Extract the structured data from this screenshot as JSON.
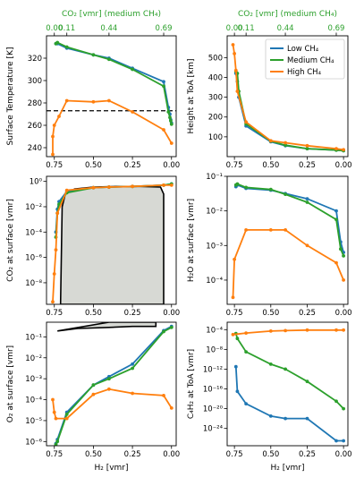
{
  "colors": {
    "low": "#1f77b4",
    "medium": "#2ca02c",
    "high": "#ff7f0e",
    "fill": "#d7d9d4",
    "dashed": "#000000"
  },
  "chart_data": [
    {
      "id": "surface-temperature",
      "type": "line",
      "ylabel": "Surface Temperature [K]",
      "xlabel": "",
      "top_axis_label": "CO₂ [vmr] (medium CH₄)",
      "top_ticks": [
        "0.00",
        "0.11",
        "0.44",
        "0.69"
      ],
      "xticks": [
        "0.75",
        "0.50",
        "0.25",
        "0.00"
      ],
      "yticks": [
        "240",
        "260",
        "280",
        "300",
        "320"
      ],
      "xlim": [
        0.8,
        -0.03
      ],
      "ylim": [
        232,
        340
      ],
      "yscale": "linear",
      "hline": 273,
      "series": [
        {
          "key": "low",
          "x": [
            0.74,
            0.73,
            0.67,
            0.5,
            0.4,
            0.25,
            0.05,
            0.02,
            0.01,
            0.005,
            0.0
          ],
          "y": [
            333,
            333,
            329,
            323,
            320,
            311,
            299,
            276,
            270,
            265,
            262
          ]
        },
        {
          "key": "medium",
          "x": [
            0.74,
            0.73,
            0.67,
            0.5,
            0.4,
            0.25,
            0.05,
            0.02,
            0.01,
            0.005,
            0.0
          ],
          "y": [
            333,
            334,
            330,
            323,
            319,
            310,
            295,
            272,
            267,
            264,
            261
          ]
        },
        {
          "key": "high",
          "x": [
            0.76,
            0.76,
            0.75,
            0.72,
            0.67,
            0.5,
            0.4,
            0.25,
            0.05,
            0.0
          ],
          "y": [
            234,
            250,
            260,
            268,
            282,
            281,
            282,
            272,
            256,
            244
          ]
        }
      ]
    },
    {
      "id": "height-toa",
      "type": "line",
      "ylabel": "Height at ToA [km]",
      "xlabel": "",
      "top_axis_label": "CO₂ [vmr] (medium CH₄)",
      "top_ticks": [
        "0.00",
        "0.11",
        "0.44",
        "0.69"
      ],
      "xticks": [
        "0.75",
        "0.50",
        "0.25",
        "0.00"
      ],
      "yticks": [
        "100",
        "200",
        "300",
        "400",
        "500"
      ],
      "xlim": [
        0.8,
        -0.03
      ],
      "ylim": [
        0,
        610
      ],
      "yscale": "linear",
      "legend": {
        "placement": "top-right",
        "entries": [
          {
            "key": "low",
            "label": "Low CH₄"
          },
          {
            "key": "medium",
            "label": "Medium CH₄"
          },
          {
            "key": "high",
            "label": "High CH₄"
          }
        ]
      },
      "series": [
        {
          "key": "low",
          "x": [
            0.74,
            0.73,
            0.72,
            0.67,
            0.5,
            0.4,
            0.25,
            0.05,
            0.0
          ],
          "y": [
            420,
            380,
            300,
            155,
            75,
            55,
            40,
            33,
            30
          ]
        },
        {
          "key": "medium",
          "x": [
            0.74,
            0.73,
            0.72,
            0.67,
            0.5,
            0.4,
            0.25,
            0.05,
            0.0
          ],
          "y": [
            430,
            420,
            330,
            165,
            78,
            58,
            40,
            33,
            30
          ]
        },
        {
          "key": "high",
          "x": [
            0.76,
            0.75,
            0.74,
            0.73,
            0.67,
            0.5,
            0.4,
            0.25,
            0.05,
            0.0
          ],
          "y": [
            565,
            520,
            435,
            330,
            175,
            80,
            70,
            55,
            40,
            35
          ]
        }
      ]
    },
    {
      "id": "co2-surface",
      "type": "line",
      "ylabel": "CO₂ at surface [vmr]",
      "xlabel": "",
      "xticks": [
        "0.75",
        "0.50",
        "0.25",
        "0.00"
      ],
      "yticks": [
        "10⁻⁸",
        "10⁻⁶",
        "10⁻⁴",
        "10⁻²",
        "10⁰"
      ],
      "ytick_exps": [
        -8,
        -6,
        -4,
        -2,
        0
      ],
      "xlim": [
        0.8,
        -0.03
      ],
      "ylim_log10": [
        -9.7,
        0.4
      ],
      "yscale": "log",
      "region": {
        "outline_x": [
          0.71,
          0.7,
          0.68,
          0.62,
          0.5,
          0.35,
          0.2,
          0.07,
          0.05,
          0.05,
          0.71
        ],
        "outline_log_y": [
          -9.7,
          -2.0,
          -1.0,
          -0.6,
          -0.45,
          -0.4,
          -0.4,
          -0.45,
          -1.0,
          -9.7,
          -9.7
        ]
      },
      "series": [
        {
          "key": "low",
          "x": [
            0.74,
            0.73,
            0.72,
            0.67,
            0.5,
            0.4,
            0.25,
            0.05,
            0.0
          ],
          "log_y": [
            -4.0,
            -2.2,
            -1.6,
            -0.8,
            -0.5,
            -0.45,
            -0.4,
            -0.3,
            -0.2
          ]
        },
        {
          "key": "medium",
          "x": [
            0.74,
            0.73,
            0.72,
            0.67,
            0.5,
            0.4,
            0.25,
            0.05,
            0.0
          ],
          "log_y": [
            -4.4,
            -2.5,
            -1.8,
            -0.9,
            -0.5,
            -0.45,
            -0.4,
            -0.3,
            -0.2
          ]
        },
        {
          "key": "high",
          "x": [
            0.76,
            0.75,
            0.74,
            0.73,
            0.67,
            0.5,
            0.4,
            0.25,
            0.05,
            0.0
          ],
          "log_y": [
            -9.5,
            -7.3,
            -5.4,
            -2.5,
            -0.7,
            -0.5,
            -0.45,
            -0.4,
            -0.3,
            -0.3
          ]
        }
      ]
    },
    {
      "id": "h2o-surface",
      "type": "line",
      "ylabel": "H₂O at surface [vmr]",
      "xlabel": "",
      "xticks": [
        "0.75",
        "0.50",
        "0.25",
        "0.00"
      ],
      "yticks": [
        "10⁻⁴",
        "10⁻³",
        "10⁻²",
        "10⁻¹"
      ],
      "ytick_exps": [
        -4,
        -3,
        -2,
        -1
      ],
      "xlim": [
        0.8,
        -0.03
      ],
      "ylim_log10": [
        -4.7,
        -1.0
      ],
      "yscale": "log",
      "series": [
        {
          "key": "low",
          "x": [
            0.74,
            0.73,
            0.67,
            0.5,
            0.4,
            0.25,
            0.05,
            0.02,
            0.0
          ],
          "log_y": [
            -1.3,
            -1.25,
            -1.35,
            -1.4,
            -1.5,
            -1.65,
            -2.0,
            -2.9,
            -3.2
          ]
        },
        {
          "key": "medium",
          "x": [
            0.74,
            0.73,
            0.67,
            0.5,
            0.4,
            0.25,
            0.05,
            0.02,
            0.0
          ],
          "log_y": [
            -1.25,
            -1.22,
            -1.32,
            -1.38,
            -1.52,
            -1.75,
            -2.25,
            -3.1,
            -3.3
          ]
        },
        {
          "key": "high",
          "x": [
            0.76,
            0.75,
            0.67,
            0.5,
            0.4,
            0.25,
            0.05,
            0.0
          ],
          "log_y": [
            -4.5,
            -3.4,
            -2.55,
            -2.55,
            -2.55,
            -3.0,
            -3.5,
            -4.0
          ]
        }
      ]
    },
    {
      "id": "o2-surface",
      "type": "line",
      "ylabel": "O₂ at surface [vmr]",
      "xlabel": "H₂ [vmr]",
      "xticks": [
        "0.75",
        "0.50",
        "0.25",
        "0.00"
      ],
      "yticks": [
        "10⁻⁶",
        "10⁻⁵",
        "10⁻⁴",
        "10⁻³",
        "10⁻²",
        "10⁻¹"
      ],
      "ytick_exps": [
        -6,
        -5,
        -4,
        -3,
        -2,
        -1
      ],
      "xlim": [
        0.8,
        -0.03
      ],
      "ylim_log10": [
        -6.2,
        -0.3
      ],
      "yscale": "log",
      "region": {
        "outline_x": [
          0.73,
          0.6,
          0.4,
          0.25,
          0.1,
          0.1,
          0.4,
          0.73
        ],
        "outline_log_y": [
          -0.72,
          -0.6,
          -0.55,
          -0.5,
          -0.5,
          -0.3,
          -0.3,
          -0.72
        ]
      },
      "series": [
        {
          "key": "low",
          "x": [
            0.74,
            0.73,
            0.67,
            0.5,
            0.4,
            0.25,
            0.05,
            0.0
          ],
          "log_y": [
            -6.1,
            -5.9,
            -4.6,
            -3.3,
            -2.9,
            -2.3,
            -0.7,
            -0.5
          ]
        },
        {
          "key": "medium",
          "x": [
            0.74,
            0.73,
            0.67,
            0.5,
            0.4,
            0.25,
            0.05,
            0.0
          ],
          "log_y": [
            -6.15,
            -6.0,
            -4.7,
            -3.3,
            -3.0,
            -2.5,
            -0.75,
            -0.55
          ]
        },
        {
          "key": "high",
          "x": [
            0.76,
            0.75,
            0.74,
            0.67,
            0.5,
            0.4,
            0.25,
            0.05,
            0.0
          ],
          "log_y": [
            -4.0,
            -4.6,
            -4.9,
            -4.9,
            -3.75,
            -3.5,
            -3.7,
            -3.8,
            -4.4
          ]
        }
      ]
    },
    {
      "id": "c4h2-toa",
      "type": "line",
      "ylabel": "C₄H₂ at ToA [vmr]",
      "xlabel": "H₂ [vmr]",
      "xticks": [
        "0.75",
        "0.50",
        "0.25",
        "0.00"
      ],
      "yticks": [
        "10⁻²⁴",
        "10⁻²⁰",
        "10⁻¹⁶",
        "10⁻¹²",
        "10⁻⁸",
        "10⁻⁴"
      ],
      "ytick_exps": [
        -24,
        -20,
        -16,
        -12,
        -8,
        -4
      ],
      "xlim": [
        0.8,
        -0.03
      ],
      "ylim_log10": [
        -27.5,
        -2.5
      ],
      "yscale": "log",
      "series": [
        {
          "key": "low",
          "x": [
            0.74,
            0.73,
            0.67,
            0.5,
            0.4,
            0.25,
            0.05,
            0.0
          ],
          "log_y": [
            -11.5,
            -16.5,
            -19,
            -21.5,
            -22,
            -22,
            -26.5,
            -26.5
          ]
        },
        {
          "key": "medium",
          "x": [
            0.74,
            0.73,
            0.67,
            0.5,
            0.4,
            0.25,
            0.05,
            0.0
          ],
          "log_y": [
            -4.8,
            -5.8,
            -8.5,
            -11,
            -12,
            -14.5,
            -18.5,
            -20
          ]
        },
        {
          "key": "high",
          "x": [
            0.76,
            0.67,
            0.5,
            0.4,
            0.25,
            0.05,
            0.0
          ],
          "log_y": [
            -5,
            -4.7,
            -4.3,
            -4.2,
            -4.1,
            -4.1,
            -4.1
          ]
        }
      ]
    }
  ]
}
